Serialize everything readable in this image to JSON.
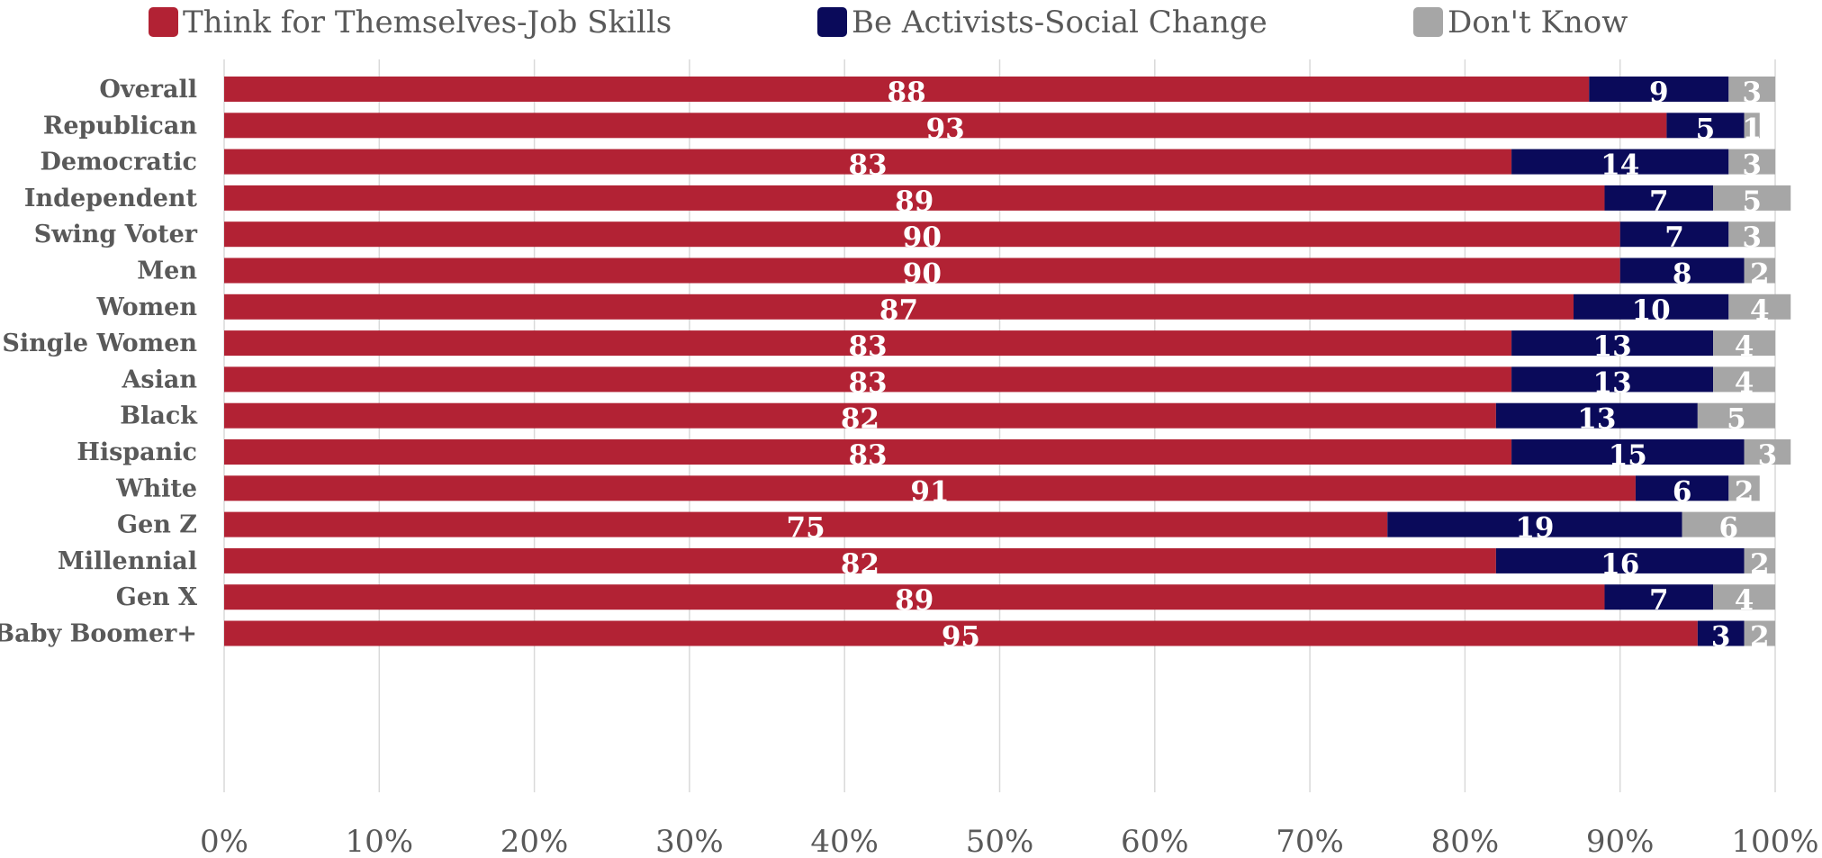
{
  "chart_data": {
    "type": "bar",
    "orientation": "horizontal",
    "stacked": true,
    "categories": [
      "Overall",
      "Republican",
      "Democratic",
      "Independent",
      "Swing Voter",
      "Men",
      "Women",
      "Single Women",
      "Asian",
      "Black",
      "Hispanic",
      "White",
      "Gen Z",
      "Millennial",
      "Gen X",
      "Baby Boomer+"
    ],
    "groups": [
      [
        "Overall"
      ],
      [
        "Republican",
        "Democratic",
        "Independent",
        "Swing Voter"
      ],
      [
        "Men",
        "Women",
        "Single Women"
      ],
      [
        "Asian",
        "Black",
        "Hispanic",
        "White"
      ],
      [
        "Gen Z",
        "Millennial",
        "Gen X",
        "Baby Boomer+"
      ]
    ],
    "series": [
      {
        "name": "Think for Themselves-Job Skills",
        "color": "#b22234",
        "values": [
          88,
          93,
          83,
          89,
          90,
          90,
          87,
          83,
          83,
          82,
          83,
          91,
          75,
          82,
          89,
          95
        ]
      },
      {
        "name": "Be Activists-Social Change",
        "color": "#0a0a5a",
        "values": [
          9,
          5,
          14,
          7,
          7,
          8,
          10,
          13,
          13,
          13,
          15,
          6,
          19,
          16,
          7,
          3
        ]
      },
      {
        "name": "Don't Know",
        "color": "#a6a6a6",
        "values": [
          3,
          1,
          3,
          5,
          3,
          2,
          4,
          4,
          4,
          5,
          3,
          2,
          6,
          2,
          4,
          2
        ]
      }
    ],
    "x_ticks": [
      "0%",
      "10%",
      "20%",
      "30%",
      "40%",
      "50%",
      "60%",
      "70%",
      "80%",
      "90%",
      "100%"
    ],
    "xlim": [
      0,
      100
    ],
    "grid": true,
    "legend": "top"
  }
}
